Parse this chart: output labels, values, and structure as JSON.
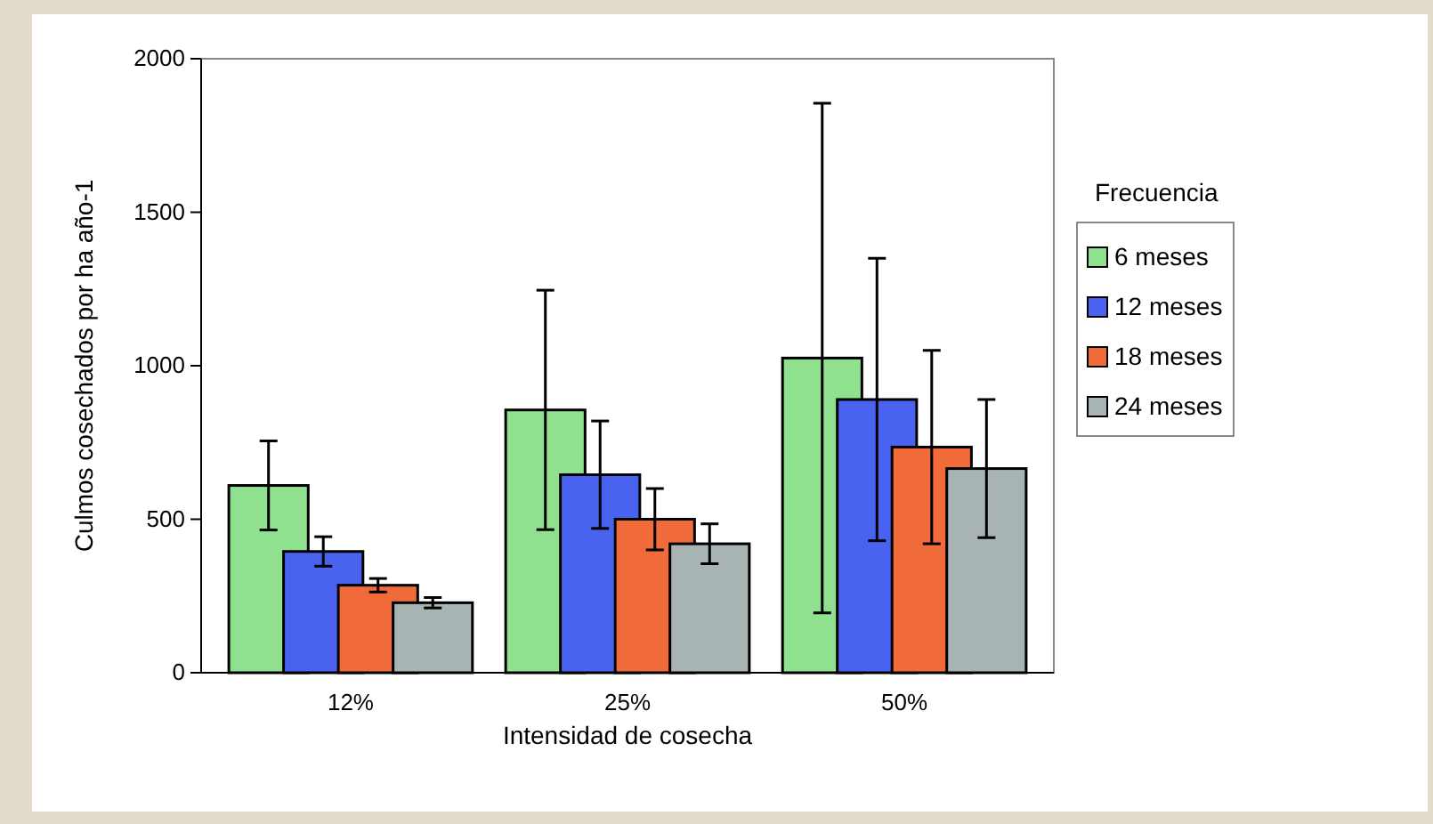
{
  "chart_data": {
    "type": "bar",
    "xlabel": "Intensidad de cosecha",
    "ylabel": "Culmos cosechados por ha año-1",
    "legend_title": "Frecuencia",
    "legend": "right",
    "grid": false,
    "categories": [
      "12%",
      "25%",
      "50%"
    ],
    "ylim": [
      0,
      2000
    ],
    "yticks": [
      0,
      500,
      1000,
      1500,
      2000
    ],
    "series": [
      {
        "name": "6 meses",
        "color": "#8fe08f",
        "values": [
          610,
          856,
          1025
        ],
        "errors": [
          145,
          390,
          830
        ]
      },
      {
        "name": "12 meses",
        "color": "#4a62f0",
        "values": [
          395,
          645,
          890
        ],
        "errors": [
          48,
          175,
          460
        ]
      },
      {
        "name": "18 meses",
        "color": "#f06a3a",
        "values": [
          285,
          500,
          735
        ],
        "errors": [
          22,
          100,
          315
        ]
      },
      {
        "name": "24 meses",
        "color": "#a8b4b4",
        "values": [
          228,
          420,
          665
        ],
        "errors": [
          17,
          65,
          225
        ]
      }
    ]
  }
}
